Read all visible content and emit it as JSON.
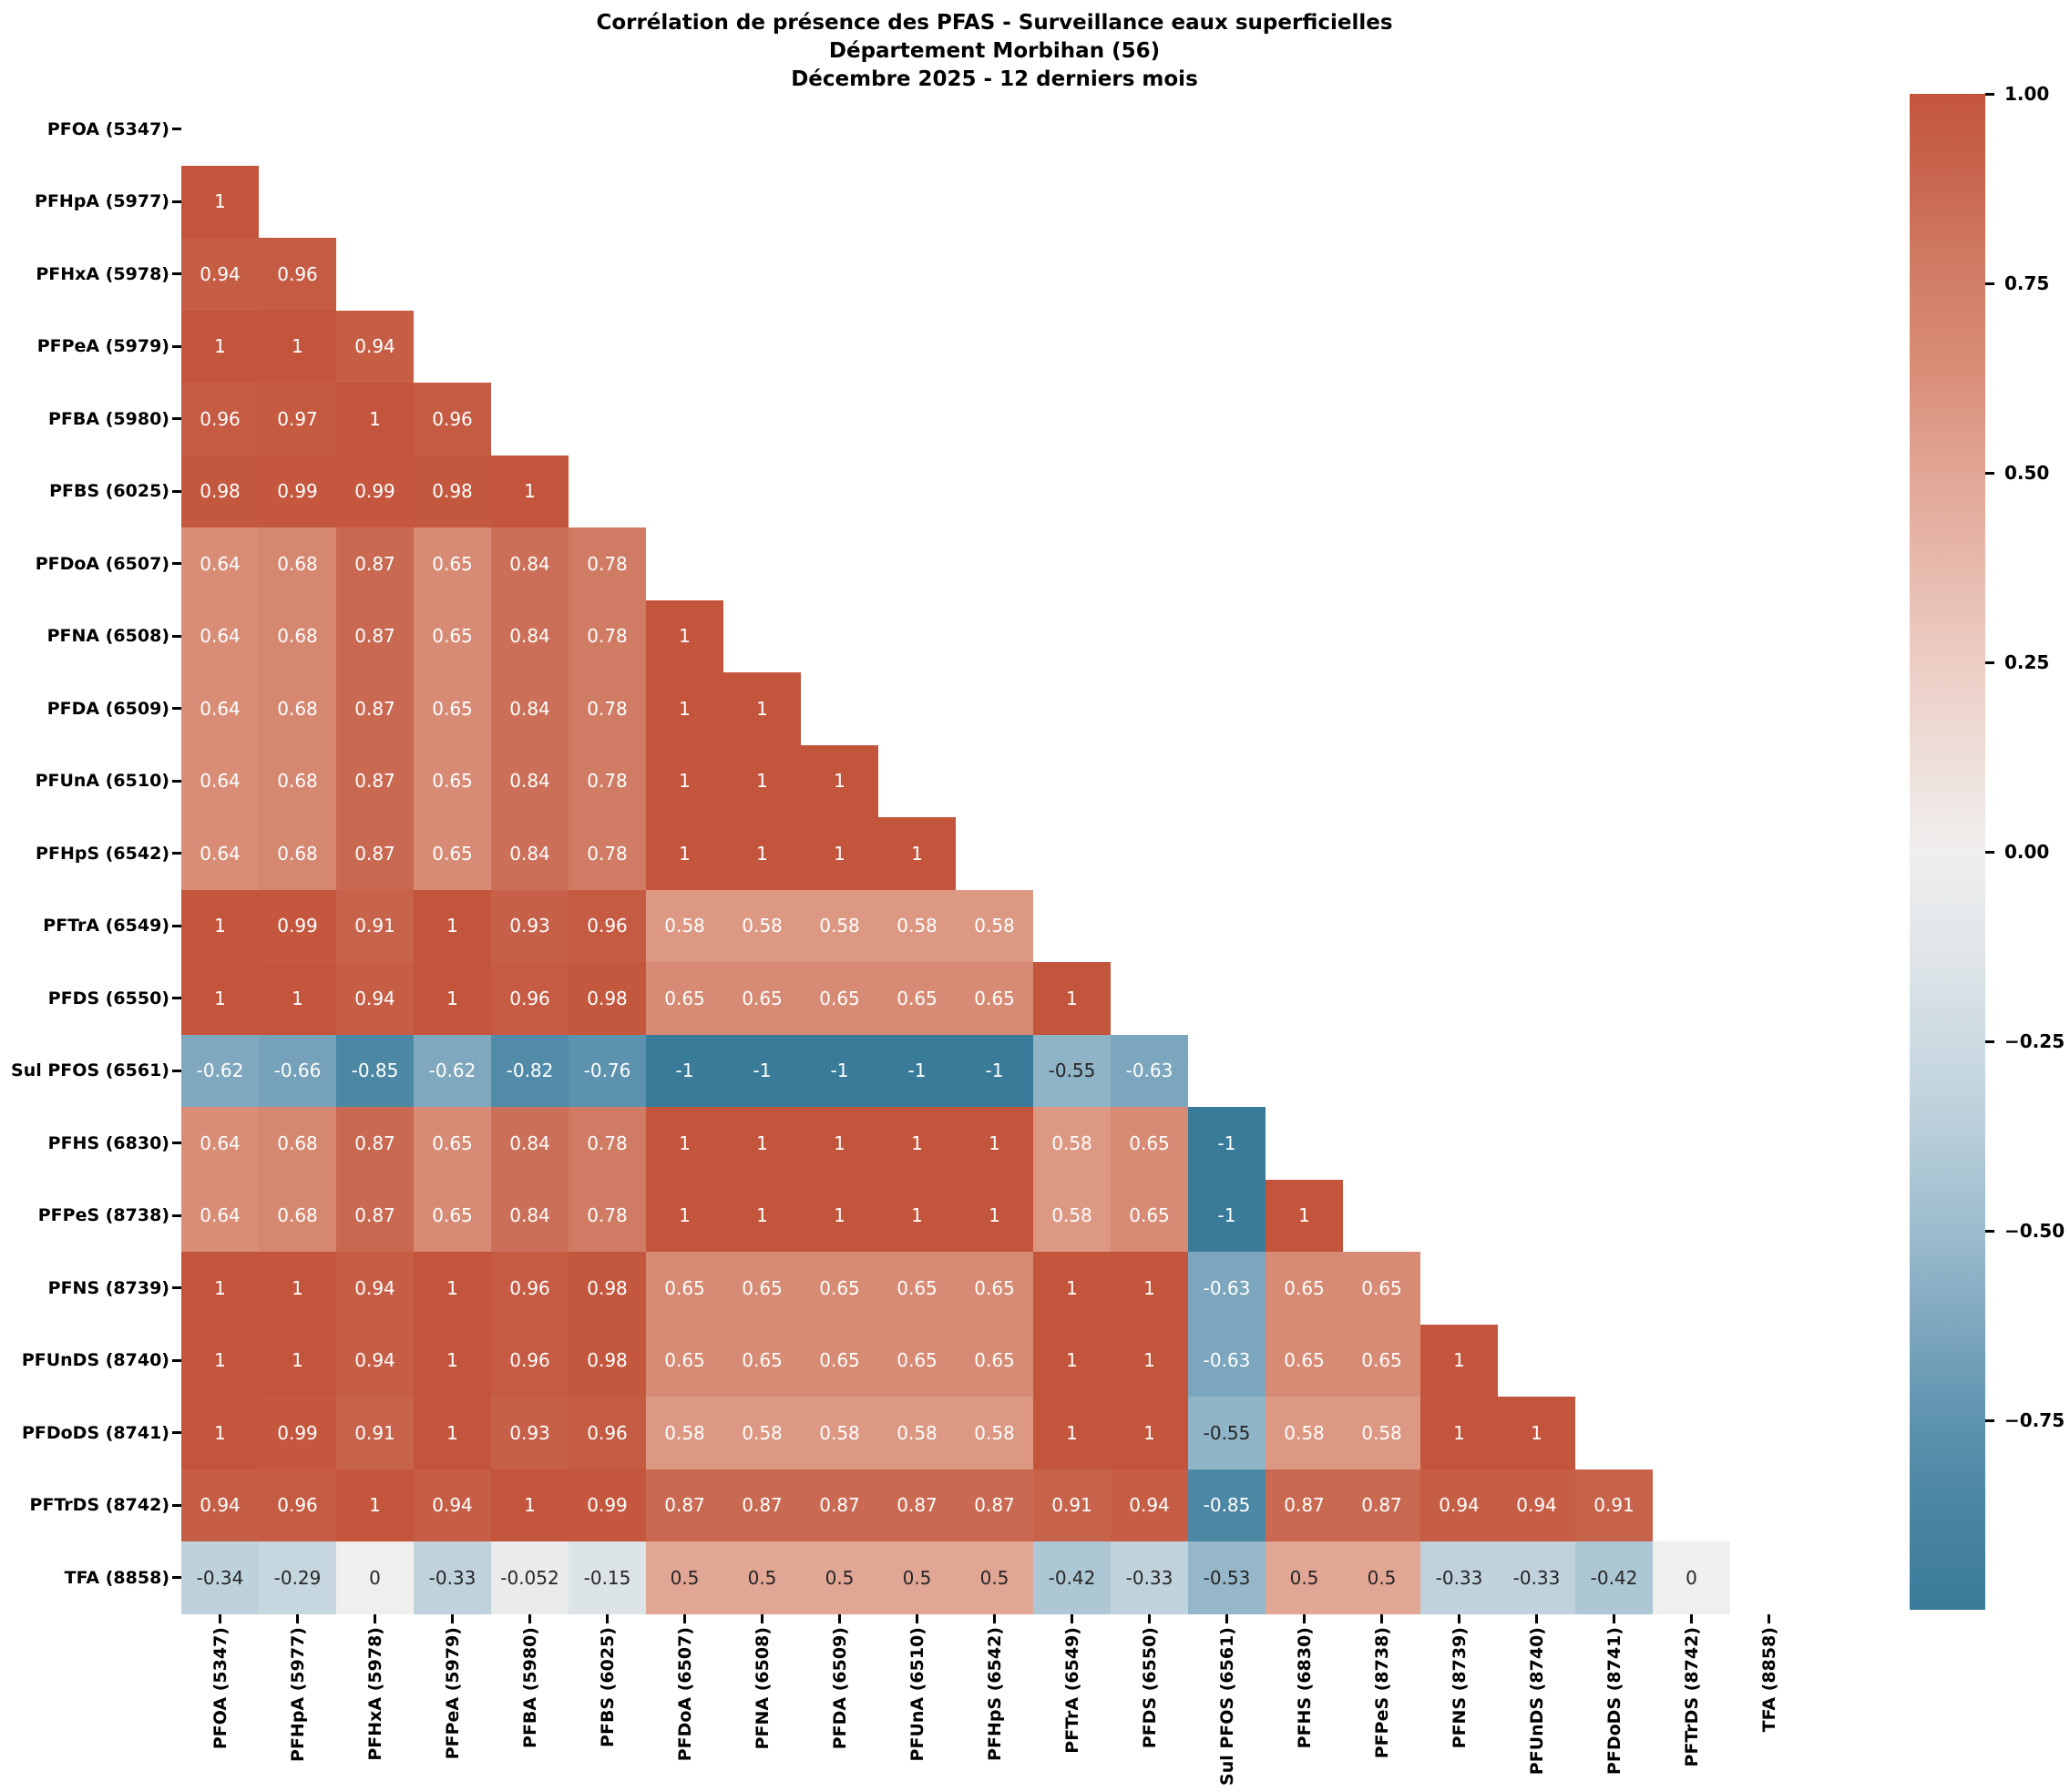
{
  "title": {
    "line1": "Corrélation de présence des PFAS - Surveillance eaux superficielles",
    "line2": "Département Morbihan (56)",
    "line3": "Décembre 2025 - 12 derniers mois"
  },
  "chart_data": {
    "type": "heatmap",
    "title": "Corrélation de présence des PFAS - Surveillance eaux superficielles",
    "subtitle": [
      "Département Morbihan (56)",
      "Décembre 2025 - 12 derniers mois"
    ],
    "mask": "upper triangle and diagonal hidden; only cells with row index > column index are drawn",
    "labels": [
      "PFOA (5347)",
      "PFHpA (5977)",
      "PFHxA (5978)",
      "PFPeA (5979)",
      "PFBA (5980)",
      "PFBS (6025)",
      "PFDoA (6507)",
      "PFNA (6508)",
      "PFDA (6509)",
      "PFUnA (6510)",
      "PFHpS (6542)",
      "PFTrA (6549)",
      "PFDS (6550)",
      "Sul PFOS (6561)",
      "PFHS (6830)",
      "PFPeS (8738)",
      "PFNS (8739)",
      "PFUnDS (8740)",
      "PFDoDS (8741)",
      "PFTrDS (8742)",
      "TFA (8858)"
    ],
    "lower_triangle": [
      [],
      [
        1
      ],
      [
        0.94,
        0.96
      ],
      [
        1,
        1,
        0.94
      ],
      [
        0.96,
        0.97,
        1,
        0.96
      ],
      [
        0.98,
        0.99,
        0.99,
        0.98,
        1
      ],
      [
        0.64,
        0.68,
        0.87,
        0.65,
        0.84,
        0.78
      ],
      [
        0.64,
        0.68,
        0.87,
        0.65,
        0.84,
        0.78,
        1
      ],
      [
        0.64,
        0.68,
        0.87,
        0.65,
        0.84,
        0.78,
        1,
        1
      ],
      [
        0.64,
        0.68,
        0.87,
        0.65,
        0.84,
        0.78,
        1,
        1,
        1
      ],
      [
        0.64,
        0.68,
        0.87,
        0.65,
        0.84,
        0.78,
        1,
        1,
        1,
        1
      ],
      [
        1,
        0.99,
        0.91,
        1,
        0.93,
        0.96,
        0.58,
        0.58,
        0.58,
        0.58,
        0.58
      ],
      [
        1,
        1,
        0.94,
        1,
        0.96,
        0.98,
        0.65,
        0.65,
        0.65,
        0.65,
        0.65,
        1
      ],
      [
        -0.62,
        -0.66,
        -0.85,
        -0.62,
        -0.82,
        -0.76,
        -1,
        -1,
        -1,
        -1,
        -1,
        -0.55,
        -0.63
      ],
      [
        0.64,
        0.68,
        0.87,
        0.65,
        0.84,
        0.78,
        1,
        1,
        1,
        1,
        1,
        0.58,
        0.65,
        -1
      ],
      [
        0.64,
        0.68,
        0.87,
        0.65,
        0.84,
        0.78,
        1,
        1,
        1,
        1,
        1,
        0.58,
        0.65,
        -1,
        1
      ],
      [
        1,
        1,
        0.94,
        1,
        0.96,
        0.98,
        0.65,
        0.65,
        0.65,
        0.65,
        0.65,
        1,
        1,
        -0.63,
        0.65,
        0.65
      ],
      [
        1,
        1,
        0.94,
        1,
        0.96,
        0.98,
        0.65,
        0.65,
        0.65,
        0.65,
        0.65,
        1,
        1,
        -0.63,
        0.65,
        0.65,
        1
      ],
      [
        1,
        0.99,
        0.91,
        1,
        0.93,
        0.96,
        0.58,
        0.58,
        0.58,
        0.58,
        0.58,
        1,
        1,
        -0.55,
        0.58,
        0.58,
        1,
        1
      ],
      [
        0.94,
        0.96,
        1,
        0.94,
        1,
        0.99,
        0.87,
        0.87,
        0.87,
        0.87,
        0.87,
        0.91,
        0.94,
        -0.85,
        0.87,
        0.87,
        0.94,
        0.94,
        0.91
      ],
      [
        -0.34,
        -0.29,
        0,
        -0.33,
        -0.052,
        -0.15,
        0.5,
        0.5,
        0.5,
        0.5,
        0.5,
        -0.42,
        -0.33,
        -0.53,
        0.5,
        0.5,
        -0.33,
        -0.33,
        -0.42,
        0
      ]
    ],
    "colorbar": {
      "vmin": -1,
      "vmax": 1,
      "ticks": [
        {
          "value": 1.0,
          "label": "1.00"
        },
        {
          "value": 0.75,
          "label": "0.75"
        },
        {
          "value": 0.5,
          "label": "0.50"
        },
        {
          "value": 0.25,
          "label": "0.25"
        },
        {
          "value": 0.0,
          "label": "0.00"
        },
        {
          "value": -0.25,
          "label": "−0.25"
        },
        {
          "value": -0.5,
          "label": "−0.50"
        },
        {
          "value": -0.75,
          "label": "−0.75"
        }
      ]
    },
    "colormap": [
      {
        "v": -1,
        "c": "#3a7b99"
      },
      {
        "v": -0.85,
        "c": "#4c87a4"
      },
      {
        "v": -0.75,
        "c": "#5e93af"
      },
      {
        "v": -0.6,
        "c": "#84abc1"
      },
      {
        "v": -0.5,
        "c": "#9cbccd"
      },
      {
        "v": -0.33,
        "c": "#c0d3dd"
      },
      {
        "v": -0.15,
        "c": "#dde4e8"
      },
      {
        "v": 0,
        "c": "#f0efee"
      },
      {
        "v": 0.25,
        "c": "#eccdc4"
      },
      {
        "v": 0.5,
        "c": "#e2a695"
      },
      {
        "v": 0.65,
        "c": "#d88b74"
      },
      {
        "v": 0.78,
        "c": "#d07b63"
      },
      {
        "v": 0.87,
        "c": "#ca6952"
      },
      {
        "v": 1,
        "c": "#c3553c"
      }
    ],
    "annotation_colors": {
      "on_dark": "#ffffff",
      "on_light": "#262626"
    },
    "background": "#ffffff"
  }
}
